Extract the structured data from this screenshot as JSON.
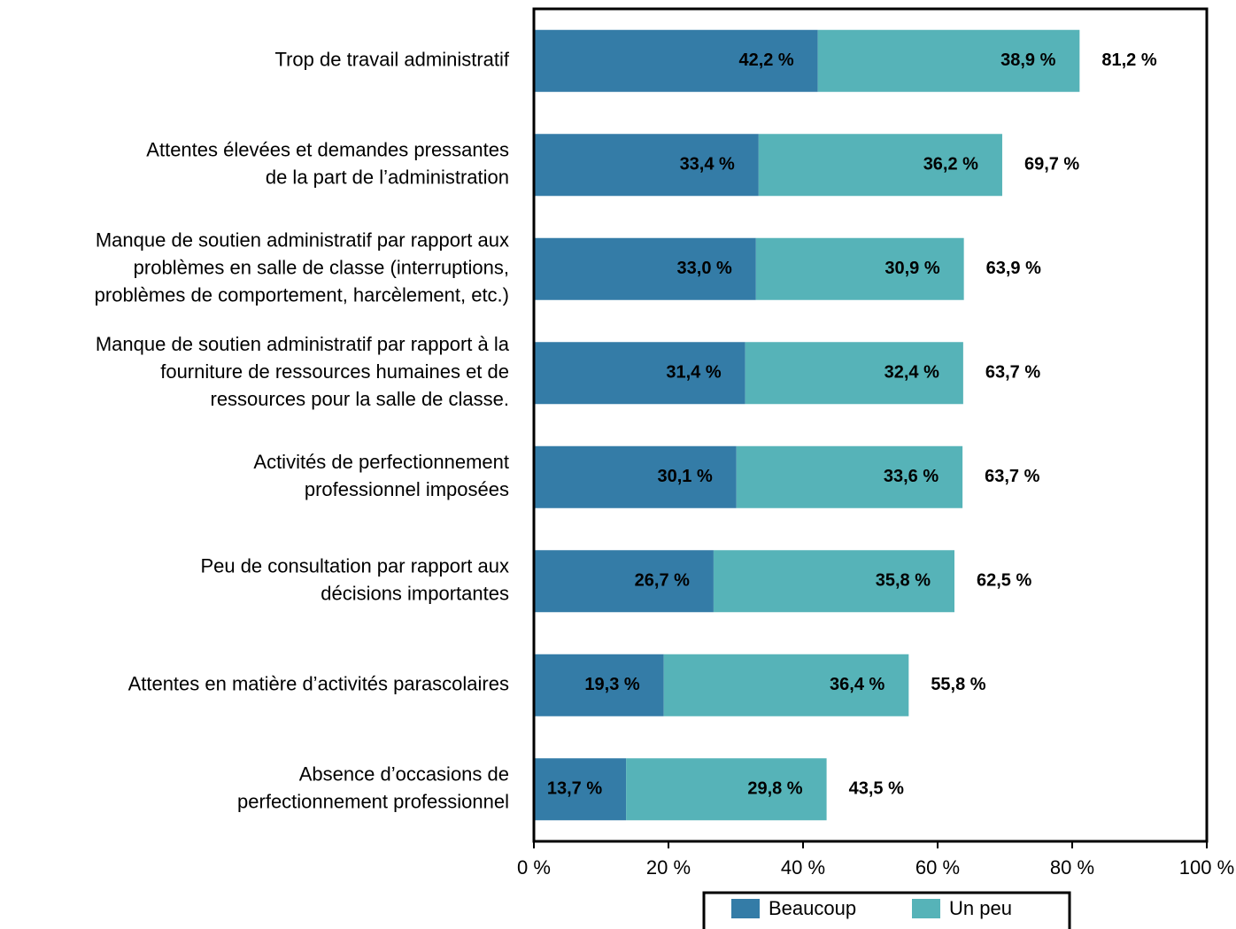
{
  "chart_data": {
    "type": "stacked_barh",
    "categories": [
      [
        "Trop de travail administratif"
      ],
      [
        "Attentes élevées et demandes pressantes",
        "de la part de l’administration"
      ],
      [
        "Manque de soutien administratif par rapport aux",
        "problèmes en salle de classe (interruptions,",
        "problèmes de comportement, harcèlement, etc.)"
      ],
      [
        "Manque de soutien administratif par rapport à la",
        "fourniture de ressources humaines et de",
        "ressources pour la salle de classe."
      ],
      [
        "Activités de perfectionnement",
        "professionnel imposées"
      ],
      [
        "Peu de consultation par rapport aux",
        "décisions importantes"
      ],
      [
        "Attentes en matière d’activités parascolaires"
      ],
      [
        "Absence d’occasions de",
        "perfectionnement professionnel"
      ]
    ],
    "series": [
      {
        "name": "Beaucoup",
        "color": "#347ca7",
        "values": [
          42.2,
          33.4,
          33.0,
          31.4,
          30.1,
          26.7,
          19.3,
          13.7
        ],
        "value_labels": [
          "42,2 %",
          "33,4 %",
          "33,0 %",
          "31,4 %",
          "30,1 %",
          "26,7 %",
          "19,3 %",
          "13,7 %"
        ]
      },
      {
        "name": "Un peu",
        "color": "#56b3b8",
        "values": [
          38.9,
          36.2,
          30.9,
          32.4,
          33.6,
          35.8,
          36.4,
          29.8
        ],
        "value_labels": [
          "38,9 %",
          "36,2 %",
          "30,9 %",
          "32,4 %",
          "33,6 %",
          "35,8 %",
          "36,4 %",
          "29,8 %"
        ]
      }
    ],
    "totals": [
      81.2,
      69.7,
      63.9,
      63.7,
      63.7,
      62.5,
      55.8,
      43.5
    ],
    "total_labels": [
      "81,2 %",
      "69,7 %",
      "63,9 %",
      "63,7 %",
      "63,7 %",
      "62,5 %",
      "55,8 %",
      "43,5 %"
    ],
    "xlim": [
      0,
      100
    ],
    "xticks": [
      {
        "value": 0,
        "label": "0 %"
      },
      {
        "value": 20,
        "label": "20 %"
      },
      {
        "value": 40,
        "label": "40 %"
      },
      {
        "value": 60,
        "label": "60 %"
      },
      {
        "value": 80,
        "label": "80 %"
      },
      {
        "value": 100,
        "label": "100 %"
      }
    ],
    "legend": "bottom"
  }
}
